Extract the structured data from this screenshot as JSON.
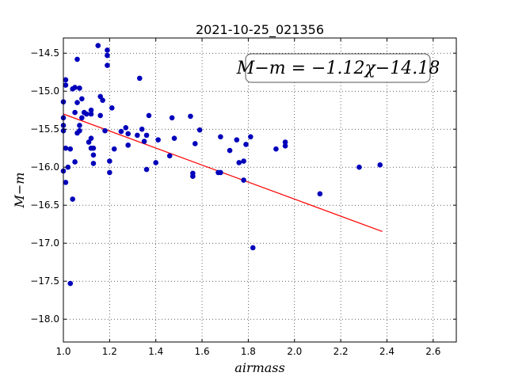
{
  "chart_data": {
    "type": "scatter",
    "title": "2021-10-25_021356",
    "xlabel": "airmass",
    "ylabel": "M−m",
    "xlim": [
      1.0,
      2.7
    ],
    "ylim": [
      -18.3,
      -14.3
    ],
    "y_inverted": true,
    "grid": true,
    "x_ticks": [
      1.0,
      1.2,
      1.4,
      1.6,
      1.8,
      2.0,
      2.2,
      2.4,
      2.6
    ],
    "x_tick_labels": [
      "1.0",
      "1.2",
      "1.4",
      "1.6",
      "1.8",
      "2.0",
      "2.2",
      "2.4",
      "2.6"
    ],
    "y_ticks": [
      -14.5,
      -15.0,
      -15.5,
      -16.0,
      -16.5,
      -17.0,
      -17.5,
      -18.0
    ],
    "y_tick_labels": [
      "−14.5",
      "−15.0",
      "−15.5",
      "−16.0",
      "−16.5",
      "−17.0",
      "−17.5",
      "−18.0"
    ],
    "annotation": "M−m = −1.12χ−14.18",
    "fit_line": {
      "slope": -1.12,
      "intercept": -14.18,
      "x_range": [
        1.0,
        2.38
      ],
      "color": "#ff0000"
    },
    "marker_color": "#0000bb",
    "points": [
      [
        1.0,
        -15.14
      ],
      [
        1.0,
        -15.35
      ],
      [
        1.01,
        -14.85
      ],
      [
        1.01,
        -14.92
      ],
      [
        1.0,
        -15.45
      ],
      [
        1.0,
        -15.52
      ],
      [
        1.01,
        -15.75
      ],
      [
        1.0,
        -16.05
      ],
      [
        1.01,
        -16.2
      ],
      [
        1.02,
        -16.0
      ],
      [
        1.03,
        -15.76
      ],
      [
        1.03,
        -17.53
      ],
      [
        1.04,
        -16.42
      ],
      [
        1.05,
        -14.95
      ],
      [
        1.04,
        -14.97
      ],
      [
        1.06,
        -14.58
      ],
      [
        1.07,
        -14.96
      ],
      [
        1.06,
        -15.15
      ],
      [
        1.05,
        -15.28
      ],
      [
        1.07,
        -15.45
      ],
      [
        1.07,
        -15.52
      ],
      [
        1.06,
        -15.55
      ],
      [
        1.08,
        -15.1
      ],
      [
        1.09,
        -15.28
      ],
      [
        1.1,
        -15.3
      ],
      [
        1.08,
        -15.35
      ],
      [
        1.05,
        -15.93
      ],
      [
        1.12,
        -15.25
      ],
      [
        1.12,
        -15.3
      ],
      [
        1.12,
        -15.62
      ],
      [
        1.11,
        -15.67
      ],
      [
        1.13,
        -15.75
      ],
      [
        1.12,
        -15.75
      ],
      [
        1.13,
        -15.84
      ],
      [
        1.13,
        -15.95
      ],
      [
        1.15,
        -14.4
      ],
      [
        1.16,
        -15.07
      ],
      [
        1.17,
        -15.12
      ],
      [
        1.16,
        -15.32
      ],
      [
        1.18,
        -15.52
      ],
      [
        1.19,
        -14.46
      ],
      [
        1.19,
        -14.53
      ],
      [
        1.19,
        -14.66
      ],
      [
        1.21,
        -15.22
      ],
      [
        1.2,
        -15.92
      ],
      [
        1.2,
        -16.07
      ],
      [
        1.22,
        -15.76
      ],
      [
        1.25,
        -15.53
      ],
      [
        1.27,
        -15.48
      ],
      [
        1.28,
        -15.56
      ],
      [
        1.28,
        -15.71
      ],
      [
        1.32,
        -15.58
      ],
      [
        1.33,
        -14.83
      ],
      [
        1.34,
        -15.5
      ],
      [
        1.35,
        -15.66
      ],
      [
        1.36,
        -15.58
      ],
      [
        1.37,
        -15.32
      ],
      [
        1.36,
        -16.03
      ],
      [
        1.4,
        -15.94
      ],
      [
        1.41,
        -15.64
      ],
      [
        1.46,
        -15.85
      ],
      [
        1.47,
        -15.35
      ],
      [
        1.48,
        -15.62
      ],
      [
        1.55,
        -15.33
      ],
      [
        1.56,
        -16.08
      ],
      [
        1.56,
        -16.12
      ],
      [
        1.57,
        -15.69
      ],
      [
        1.59,
        -15.51
      ],
      [
        1.67,
        -16.07
      ],
      [
        1.68,
        -15.6
      ],
      [
        1.68,
        -16.07
      ],
      [
        1.72,
        -15.78
      ],
      [
        1.75,
        -15.64
      ],
      [
        1.76,
        -15.94
      ],
      [
        1.78,
        -15.92
      ],
      [
        1.79,
        -15.7
      ],
      [
        1.78,
        -16.17
      ],
      [
        1.81,
        -15.6
      ],
      [
        1.82,
        -17.06
      ],
      [
        1.92,
        -15.76
      ],
      [
        1.96,
        -15.67
      ],
      [
        1.96,
        -15.72
      ],
      [
        2.11,
        -16.35
      ],
      [
        2.28,
        -16.0
      ],
      [
        2.37,
        -15.97
      ]
    ]
  }
}
